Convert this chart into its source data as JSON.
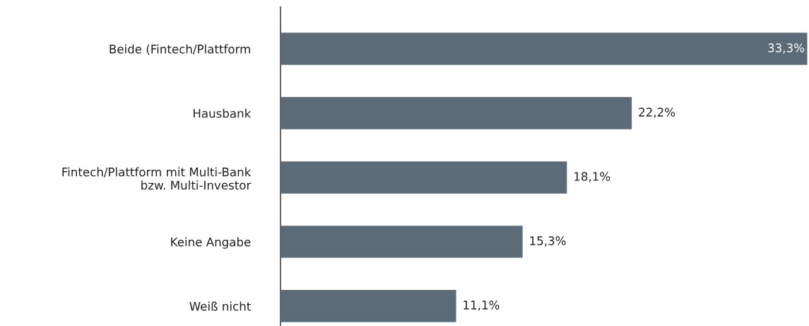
{
  "chart_data": {
    "type": "bar",
    "orientation": "horizontal",
    "categories": [
      "Beide (Fintech/Plattform",
      "Hausbank",
      "Fintech/Plattform mit Multi-Bank\nbzw. Multi-Investor",
      "Keine Angabe",
      "Weiß nicht"
    ],
    "values": [
      33.3,
      22.2,
      18.1,
      15.3,
      11.1
    ],
    "value_labels": [
      "33,3%",
      "22,2%",
      "18,1%",
      "15,3%",
      "11,1%"
    ],
    "color": "#5b6b78",
    "grid": false,
    "legend": false
  }
}
